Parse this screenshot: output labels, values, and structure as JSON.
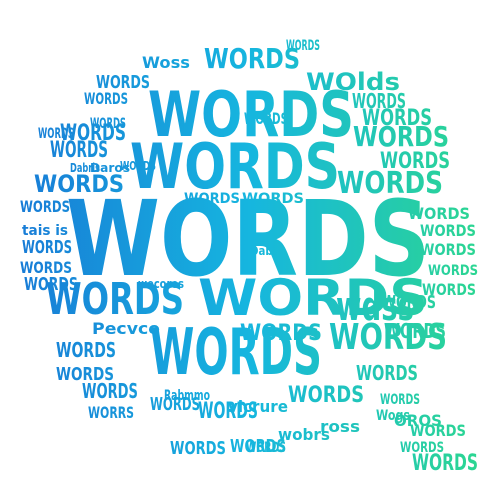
{
  "word_cloud": {
    "shape": "speech-bubble",
    "gradient": {
      "start_color": "#1877d6",
      "mid_color": "#16b6df",
      "end_color": "#2ed98a"
    },
    "primary_word": "WORDS",
    "words": [
      "WORDS",
      "WORDS",
      "WORDS",
      "WORDS",
      "WORDS",
      "WORDS",
      "WORDS",
      "WORDS",
      "WORDS",
      "WORDS",
      "WORDS",
      "WORDS",
      "WORDS",
      "WORDS",
      "WORDS",
      "WORDS",
      "WORDS",
      "WORDS",
      "WORDS",
      "WORDS",
      "WORDS",
      "WORDS",
      "WORDS",
      "WORDS",
      "WORDS",
      "WORDS",
      "WORDS",
      "WORDS",
      "WORDS",
      "WORDS",
      "WORDS",
      "WORDS",
      "WORDS",
      "WORDS",
      "WORDS",
      "WORDS",
      "WORDS",
      "WORDS",
      "WORDS",
      "WORDS",
      "WORDS",
      "WORDS",
      "WORDS",
      "WORDS",
      "WORDS",
      "WORDS",
      "WORDS",
      "WORDS",
      "WORDS",
      "WORDS",
      "WORDS",
      "WORDS",
      "WORDS",
      "WORDS",
      "WORDS",
      "WORDS"
    ],
    "fragments": [
      "Woss",
      "WOlds",
      "Daros",
      "Dabris",
      "tais is",
      "wecoros",
      "Pecvce",
      "WORRS",
      "Rabmmo",
      "vicrure",
      "wobrs",
      "ross",
      "Wogs",
      "OROS",
      "wdss",
      "Dabus",
      "WORDS"
    ]
  }
}
